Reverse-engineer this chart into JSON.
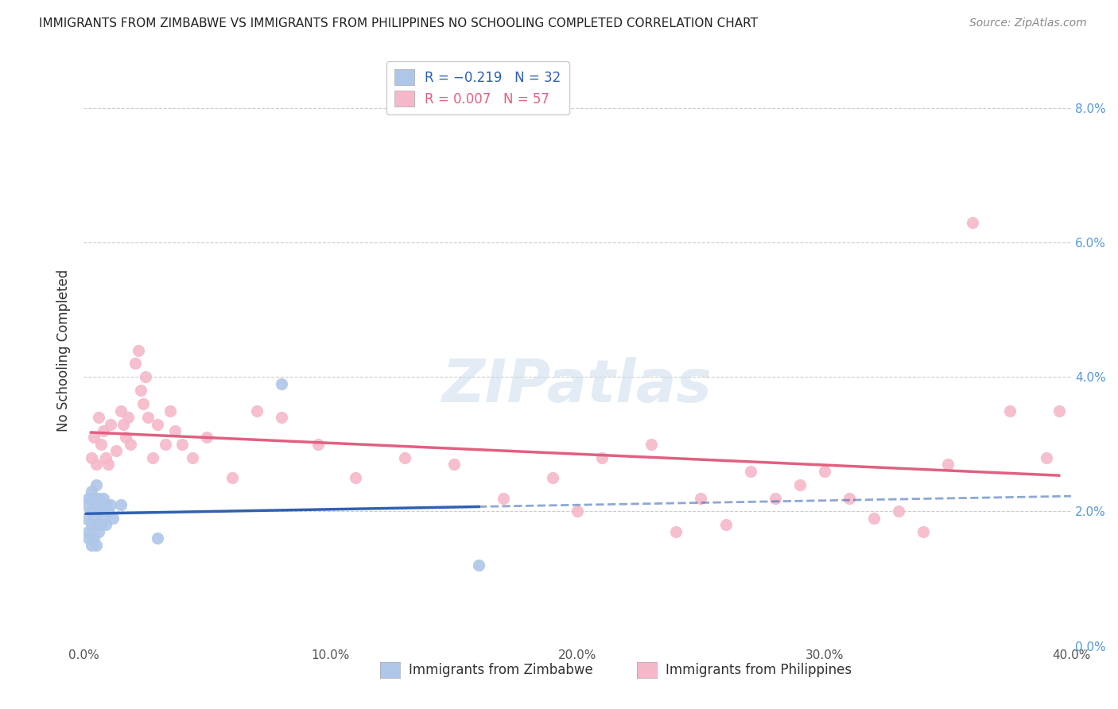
{
  "title": "IMMIGRANTS FROM ZIMBABWE VS IMMIGRANTS FROM PHILIPPINES NO SCHOOLING COMPLETED CORRELATION CHART",
  "source": "Source: ZipAtlas.com",
  "ylabel": "No Schooling Completed",
  "legend1_color": "#aec6e8",
  "legend2_color": "#f5b8c8",
  "trendline1_color": "#3060b0",
  "trendline2_color": "#e06080",
  "scatter1_color": "#aec6e8",
  "scatter2_color": "#f5b8c8",
  "background_color": "#ffffff",
  "grid_color": "#cccccc",
  "xlim": [
    0.0,
    0.4
  ],
  "ylim": [
    0.0,
    0.088
  ],
  "zimbabwe_x": [
    0.001,
    0.001,
    0.002,
    0.002,
    0.002,
    0.003,
    0.003,
    0.003,
    0.003,
    0.004,
    0.004,
    0.004,
    0.005,
    0.005,
    0.005,
    0.005,
    0.006,
    0.006,
    0.006,
    0.007,
    0.007,
    0.008,
    0.008,
    0.009,
    0.009,
    0.01,
    0.011,
    0.012,
    0.015,
    0.03,
    0.08,
    0.16
  ],
  "zimbabwe_y": [
    0.019,
    0.021,
    0.022,
    0.017,
    0.016,
    0.023,
    0.02,
    0.018,
    0.015,
    0.022,
    0.019,
    0.016,
    0.024,
    0.021,
    0.018,
    0.015,
    0.022,
    0.02,
    0.017,
    0.021,
    0.018,
    0.022,
    0.019,
    0.021,
    0.018,
    0.02,
    0.021,
    0.019,
    0.021,
    0.016,
    0.039,
    0.012
  ],
  "philippines_x": [
    0.003,
    0.004,
    0.005,
    0.006,
    0.007,
    0.008,
    0.009,
    0.01,
    0.011,
    0.013,
    0.015,
    0.016,
    0.017,
    0.018,
    0.019,
    0.021,
    0.022,
    0.023,
    0.024,
    0.025,
    0.026,
    0.028,
    0.03,
    0.033,
    0.035,
    0.037,
    0.04,
    0.044,
    0.05,
    0.06,
    0.07,
    0.08,
    0.095,
    0.11,
    0.13,
    0.15,
    0.17,
    0.19,
    0.21,
    0.23,
    0.25,
    0.27,
    0.29,
    0.31,
    0.33,
    0.35,
    0.36,
    0.375,
    0.39,
    0.395,
    0.2,
    0.24,
    0.28,
    0.32,
    0.26,
    0.3,
    0.34
  ],
  "philippines_y": [
    0.028,
    0.031,
    0.027,
    0.034,
    0.03,
    0.032,
    0.028,
    0.027,
    0.033,
    0.029,
    0.035,
    0.033,
    0.031,
    0.034,
    0.03,
    0.042,
    0.044,
    0.038,
    0.036,
    0.04,
    0.034,
    0.028,
    0.033,
    0.03,
    0.035,
    0.032,
    0.03,
    0.028,
    0.031,
    0.025,
    0.035,
    0.034,
    0.03,
    0.025,
    0.028,
    0.027,
    0.022,
    0.025,
    0.028,
    0.03,
    0.022,
    0.026,
    0.024,
    0.022,
    0.02,
    0.027,
    0.063,
    0.035,
    0.028,
    0.035,
    0.02,
    0.017,
    0.022,
    0.019,
    0.018,
    0.026,
    0.017
  ]
}
